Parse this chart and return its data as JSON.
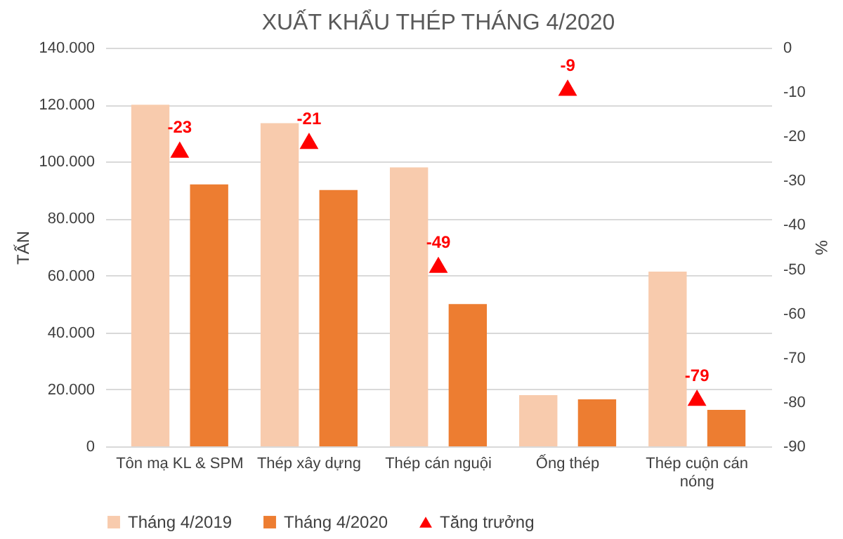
{
  "chart_data": {
    "type": "bar",
    "title": "XUẤT KHẨU THÉP THÁNG 4/2020",
    "ylabel": "TẤN",
    "y2label": "%",
    "categories": [
      "Tôn mạ KL & SPM",
      "Thép xây dựng",
      "Thép cán nguội",
      "Ống thép",
      "Thép cuộn cán nóng"
    ],
    "series": [
      {
        "name": "Tháng 4/2019",
        "color": "#f8cbad",
        "values": [
          120000,
          113500,
          98000,
          18000,
          61400
        ]
      },
      {
        "name": "Tháng 4/2020",
        "color": "#ed7d31",
        "values": [
          92000,
          90000,
          50000,
          16500,
          12800
        ]
      },
      {
        "name": "Tăng trưởng",
        "type": "scatter",
        "axis": "y2",
        "color": "#ff0000",
        "marker": "triangle",
        "values": [
          -23,
          -21,
          -49,
          -9,
          -79
        ],
        "value_labels": [
          "-23",
          "-21",
          "-49",
          "-9",
          "-79"
        ]
      }
    ],
    "ylim": [
      0,
      140000
    ],
    "yticks": [
      {
        "value": 0,
        "label": "0"
      },
      {
        "value": 20000,
        "label": "20.000"
      },
      {
        "value": 40000,
        "label": "40.000"
      },
      {
        "value": 60000,
        "label": "60.000"
      },
      {
        "value": 80000,
        "label": "80.000"
      },
      {
        "value": 100000,
        "label": "100.000"
      },
      {
        "value": 120000,
        "label": "120.000"
      },
      {
        "value": 140000,
        "label": "140.000"
      }
    ],
    "y2lim": [
      -90,
      0
    ],
    "y2ticks": [
      -90,
      -80,
      -70,
      -60,
      -50,
      -40,
      -30,
      -20,
      -10,
      0
    ],
    "grid": "y",
    "legend": "bottom"
  }
}
